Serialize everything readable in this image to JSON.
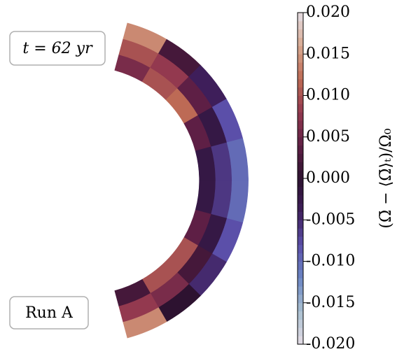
{
  "chart_data": {
    "type": "contour",
    "time_label": "t = 62 yr",
    "run_label": "Run A",
    "colorbar_label": "(Ω̄ − ⟨Ω̄⟩ₜ)/Ω₀",
    "clim": [
      -0.02,
      0.02
    ],
    "colormap": [
      "#e4dce4",
      "#a9bfd0",
      "#6b86c3",
      "#5b4fa9",
      "#3e1e5a",
      "#2d1230",
      "#5e1f45",
      "#93394f",
      "#bd6a55",
      "#d7a88f",
      "#e4dce4"
    ],
    "cticks": [
      {
        "value": 0.02,
        "label": "0.020"
      },
      {
        "value": 0.015,
        "label": "0.015"
      },
      {
        "value": 0.01,
        "label": "0.010"
      },
      {
        "value": 0.005,
        "label": "0.005"
      },
      {
        "value": 0,
        "label": "0.000"
      },
      {
        "value": -0.005,
        "label": "-0.005"
      },
      {
        "value": -0.01,
        "label": "-0.010"
      },
      {
        "value": -0.015,
        "label": "-0.015"
      },
      {
        "value": -0.02,
        "label": "-0.020"
      }
    ],
    "field": {
      "latitudes": [
        75,
        60,
        45,
        30,
        15,
        0,
        -15,
        -30,
        -45,
        -60,
        -75
      ],
      "radii": [
        0.7,
        0.8,
        0.9,
        1.0
      ],
      "values": [
        [
          0.006,
          0.01,
          0.014
        ],
        [
          0.01,
          0.008,
          0.002
        ],
        [
          0.012,
          0.004,
          -0.004
        ],
        [
          0.004,
          -0.002,
          -0.008
        ],
        [
          -0.002,
          -0.006,
          -0.01
        ],
        [
          -0.002,
          -0.006,
          -0.01
        ],
        [
          0.004,
          -0.002,
          -0.008
        ],
        [
          0.01,
          0.002,
          -0.005
        ],
        [
          0.01,
          0.006,
          0.0
        ],
        [
          0.002,
          0.008,
          0.014
        ]
      ]
    }
  }
}
